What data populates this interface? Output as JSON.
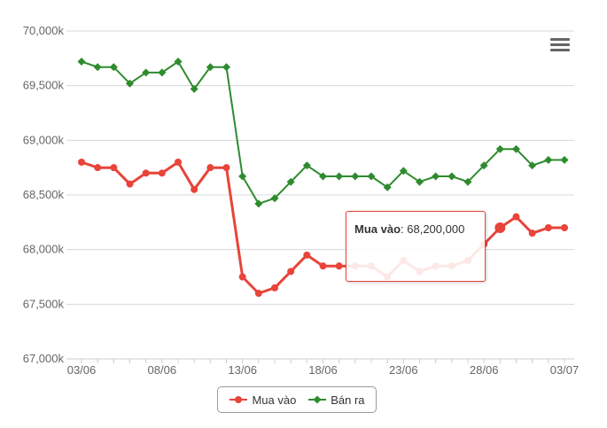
{
  "colors": {
    "buy": "#e8443a",
    "sell": "#2e8b2e",
    "grid": "#d8d8d8",
    "axis": "#cccccc"
  },
  "menu": {
    "icon": "hamburger-menu-icon"
  },
  "legend": {
    "buy_label": "Mua vào",
    "sell_label": "Bán ra"
  },
  "tooltip": {
    "series": "Mua vào",
    "sep": ": ",
    "value": "68,200,000"
  },
  "chart_data": {
    "type": "line",
    "title": "",
    "xlabel": "",
    "ylabel": "",
    "ylim": [
      67000,
      70000
    ],
    "yticks": [
      67000,
      67500,
      68000,
      68500,
      69000,
      69500,
      70000
    ],
    "ytick_labels": [
      "67,000k",
      "67,500k",
      "68,000k",
      "68,500k",
      "69,000k",
      "69,500k",
      "70,000k"
    ],
    "x": [
      "03/06",
      "04/06",
      "05/06",
      "06/06",
      "07/06",
      "08/06",
      "09/06",
      "10/06",
      "11/06",
      "12/06",
      "13/06",
      "14/06",
      "15/06",
      "16/06",
      "17/06",
      "18/06",
      "19/06",
      "20/06",
      "21/06",
      "22/06",
      "23/06",
      "24/06",
      "25/06",
      "26/06",
      "27/06",
      "28/06",
      "29/06",
      "30/06",
      "01/07",
      "02/07",
      "03/07"
    ],
    "xtick_labels": [
      "03/06",
      "08/06",
      "13/06",
      "18/06",
      "23/06",
      "28/06",
      "03/07"
    ],
    "grid": true,
    "legend_position": "bottom",
    "series": [
      {
        "name": "Mua vào",
        "marker": "circle",
        "values": [
          68800,
          68750,
          68750,
          68600,
          68700,
          68700,
          68800,
          68550,
          68750,
          68750,
          67750,
          67600,
          67650,
          67800,
          67950,
          67850,
          67850,
          67850,
          67850,
          67750,
          67900,
          67800,
          67850,
          67850,
          67900,
          68050,
          68200,
          68300,
          68150,
          68200,
          68200
        ]
      },
      {
        "name": "Bán ra",
        "marker": "diamond",
        "values": [
          69720,
          69670,
          69670,
          69520,
          69620,
          69620,
          69720,
          69470,
          69670,
          69670,
          68670,
          68420,
          68470,
          68620,
          68770,
          68670,
          68670,
          68670,
          68670,
          68570,
          68720,
          68620,
          68670,
          68670,
          68620,
          68770,
          68920,
          68920,
          68770,
          68820,
          68820
        ]
      }
    ],
    "highlight_index": 26
  }
}
